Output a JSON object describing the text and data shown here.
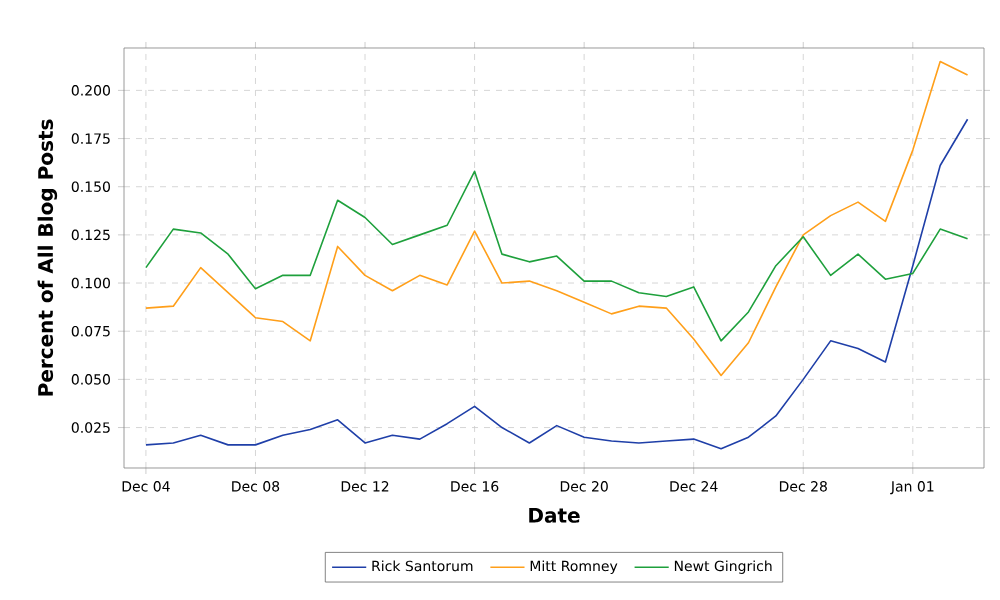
{
  "chart_data": {
    "type": "line",
    "xlabel": "Date",
    "ylabel": "Percent of All Blog Posts",
    "categories": [
      "Dec 04",
      null,
      null,
      null,
      "Dec 08",
      null,
      null,
      null,
      "Dec 12",
      null,
      null,
      null,
      "Dec 16",
      null,
      null,
      null,
      "Dec 20",
      null,
      null,
      null,
      "Dec 24",
      null,
      null,
      null,
      "Dec 28",
      null,
      null,
      null,
      "Jan 01",
      null,
      null
    ],
    "series": [
      {
        "name": "Rick Santorum",
        "color": "#1f3fa8",
        "values": [
          0.016,
          0.017,
          0.021,
          0.016,
          0.016,
          0.021,
          0.024,
          0.029,
          0.017,
          0.021,
          0.019,
          0.027,
          0.036,
          0.025,
          0.017,
          0.026,
          0.02,
          0.018,
          0.017,
          0.018,
          0.019,
          0.014,
          0.02,
          0.031,
          0.05,
          0.07,
          0.066,
          0.059,
          0.109,
          0.161,
          0.185
        ]
      },
      {
        "name": "Mitt Romney",
        "color": "#ff9f1a",
        "values": [
          0.087,
          0.088,
          0.108,
          0.095,
          0.082,
          0.08,
          0.07,
          0.119,
          0.104,
          0.096,
          0.104,
          0.099,
          0.127,
          0.1,
          0.101,
          0.096,
          0.09,
          0.084,
          0.088,
          0.087,
          0.071,
          0.052,
          0.069,
          0.098,
          0.125,
          0.135,
          0.142,
          0.132,
          0.169,
          0.215,
          0.208
        ]
      },
      {
        "name": "Newt Gingrich",
        "color": "#1ea03c",
        "values": [
          0.108,
          0.128,
          0.126,
          0.115,
          0.097,
          0.104,
          0.104,
          0.143,
          0.134,
          0.12,
          0.125,
          0.13,
          0.158,
          0.115,
          0.111,
          0.114,
          0.101,
          0.101,
          0.095,
          0.093,
          0.098,
          0.07,
          0.085,
          0.109,
          0.124,
          0.104,
          0.115,
          0.102,
          0.105,
          0.128,
          0.123
        ]
      }
    ],
    "ylim": [
      0.004,
      0.222
    ],
    "yticks": [
      {
        "value": 0.025,
        "label": "0.025"
      },
      {
        "value": 0.05,
        "label": "0.050"
      },
      {
        "value": 0.075,
        "label": "0.075"
      },
      {
        "value": 0.1,
        "label": "0.100"
      },
      {
        "value": 0.125,
        "label": "0.125"
      },
      {
        "value": 0.15,
        "label": "0.150"
      },
      {
        "value": 0.175,
        "label": "0.175"
      },
      {
        "value": 0.2,
        "label": "0.200"
      }
    ],
    "grid": true,
    "legend": "bottom",
    "marker": "none",
    "line_style": "solid"
  }
}
